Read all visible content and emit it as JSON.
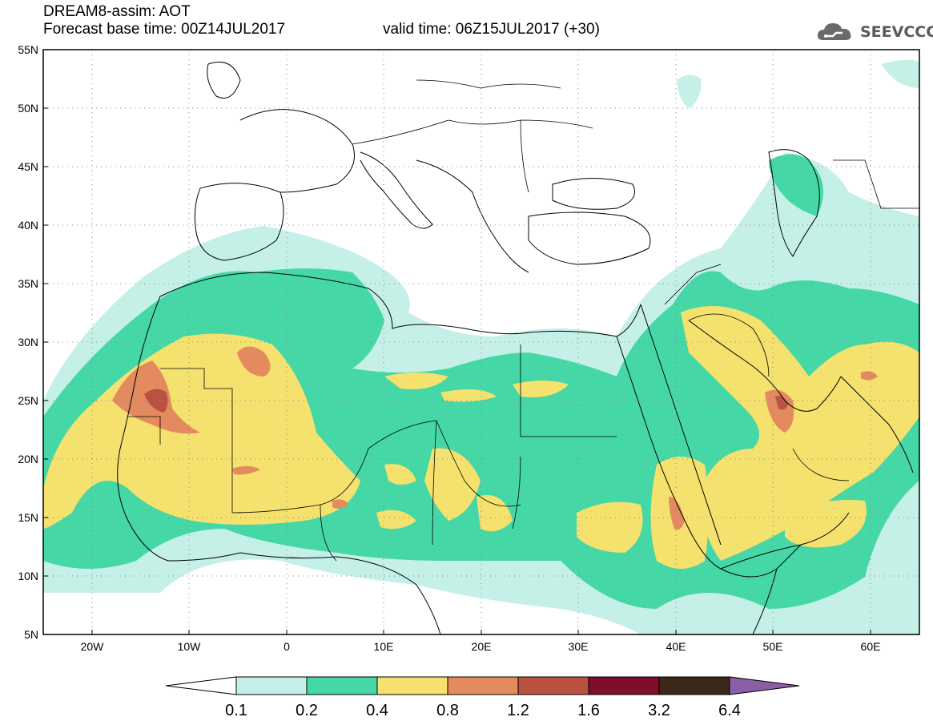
{
  "header": {
    "title_line1": "DREAM8-assim: AOT",
    "title_line2": "Forecast base time: 00Z14JUL2017",
    "valid_time": "valid time: 06Z15JUL2017 (+30)",
    "logo_text": "SEEVCCC"
  },
  "map": {
    "lat_labels": [
      "55N",
      "50N",
      "45N",
      "40N",
      "35N",
      "30N",
      "25N",
      "20N",
      "15N",
      "10N",
      "5N"
    ],
    "lon_labels": [
      "20W",
      "10W",
      "0",
      "10E",
      "20E",
      "30E",
      "40E",
      "50E",
      "60E"
    ],
    "lon_range": [
      -25,
      65
    ],
    "lat_range": [
      5,
      55
    ],
    "grid": "dotted"
  },
  "colorbar": {
    "levels": [
      "0.1",
      "0.2",
      "0.4",
      "0.8",
      "1.2",
      "1.6",
      "3.2",
      "6.4"
    ],
    "colors": [
      "#ffffff",
      "#c4f0e8",
      "#46d7a7",
      "#f5e16e",
      "#e48a5f",
      "#b9533f",
      "#7e0f2c",
      "#3c2818",
      "#8d5ea8"
    ]
  }
}
